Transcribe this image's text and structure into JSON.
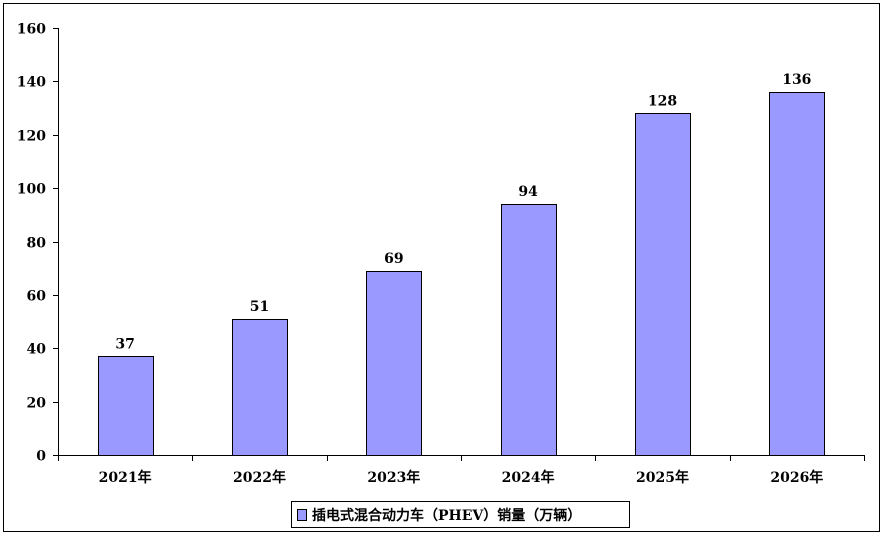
{
  "chart_data": {
    "type": "bar",
    "categories": [
      "2021年",
      "2022年",
      "2023年",
      "2024年",
      "2025年",
      "2026年"
    ],
    "series": [
      {
        "name": "插电式混合动力车（PHEV）销量（万辆）",
        "values": [
          37,
          51,
          69,
          94,
          128,
          136
        ],
        "data_labels": [
          "37",
          "51",
          "69",
          "94",
          "128",
          "136"
        ]
      }
    ],
    "yticks": [
      "0",
      "20",
      "40",
      "60",
      "80",
      "100",
      "120",
      "140",
      "160"
    ],
    "ylim": [
      0,
      160
    ],
    "grid": false,
    "legend_position": "bottom-center",
    "colors": {
      "bar_fill": "#9999FF",
      "bar_stroke": "#000000",
      "axis": "#000000"
    }
  }
}
